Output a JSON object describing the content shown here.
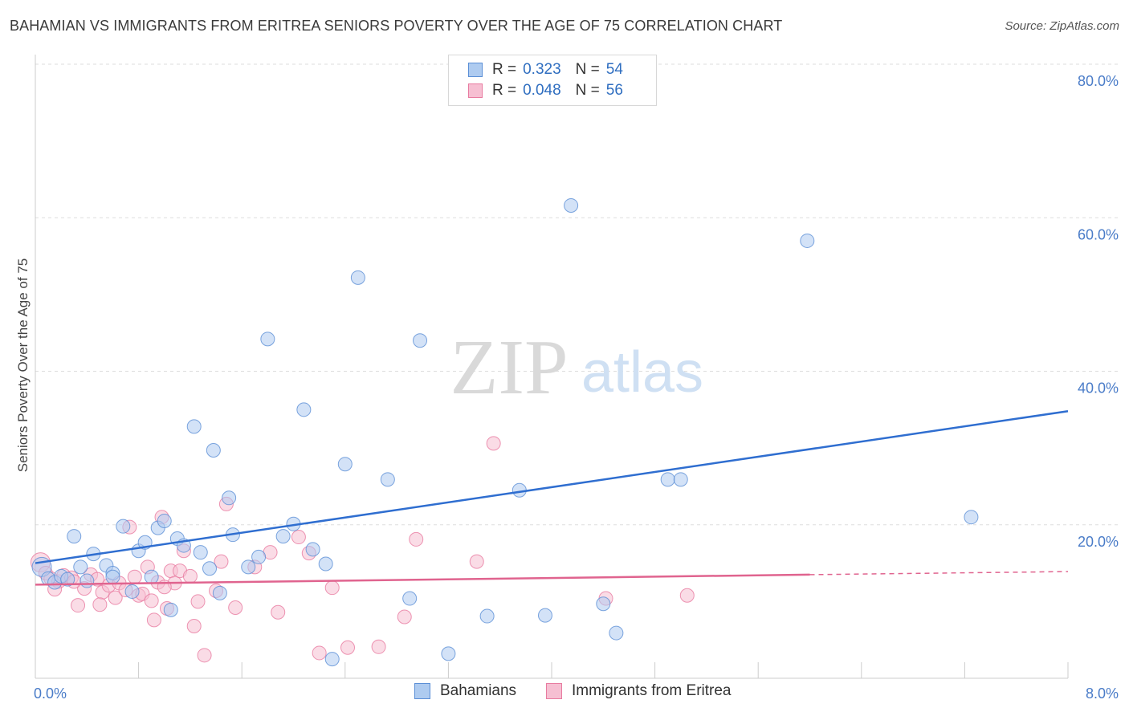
{
  "title": "BAHAMIAN VS IMMIGRANTS FROM ERITREA SENIORS POVERTY OVER THE AGE OF 75 CORRELATION CHART",
  "source": "Source: ZipAtlas.com",
  "colors": {
    "blue": "#5b8fd6",
    "blue_fill": "#aecbf0",
    "pink": "#e87ba0",
    "pink_fill": "#f6bfd2",
    "tick": "#4a7cc8",
    "grid": "#dddddd"
  },
  "legend": {
    "r_label": "R =",
    "n_label": "N =",
    "rows": [
      {
        "r": "0.323",
        "n": "54"
      },
      {
        "r": "0.048",
        "n": "56"
      }
    ]
  },
  "watermark": {
    "zip": "ZIP",
    "atlas": "atlas"
  },
  "chart_data": {
    "type": "scatter",
    "xlabel": "",
    "ylabel": "Seniors Poverty Over the Age of 75",
    "xlim": [
      0,
      8
    ],
    "ylim": [
      0,
      80
    ],
    "x_ticks": [
      "0.0%",
      "8.0%"
    ],
    "y_ticks": [
      {
        "value": 20,
        "label": "20.0%"
      },
      {
        "value": 40,
        "label": "40.0%"
      },
      {
        "value": 60,
        "label": "60.0%"
      },
      {
        "value": 80,
        "label": "80.0%"
      }
    ],
    "grid": true,
    "legend_position": "bottom",
    "series": [
      {
        "name": "Bahamians",
        "trend": {
          "x": [
            0,
            8
          ],
          "y": [
            15.0,
            34.8
          ]
        },
        "points": [
          [
            0.05,
            14.5
          ],
          [
            0.1,
            13.0
          ],
          [
            0.15,
            12.5
          ],
          [
            0.2,
            13.3
          ],
          [
            0.3,
            18.5
          ],
          [
            0.35,
            14.5
          ],
          [
            0.4,
            12.7
          ],
          [
            0.45,
            16.2
          ],
          [
            0.55,
            14.7
          ],
          [
            0.6,
            13.7
          ],
          [
            0.68,
            19.8
          ],
          [
            0.75,
            11.3
          ],
          [
            0.8,
            16.6
          ],
          [
            0.85,
            17.7
          ],
          [
            0.9,
            13.2
          ],
          [
            0.95,
            19.6
          ],
          [
            1.0,
            20.5
          ],
          [
            1.05,
            8.9
          ],
          [
            1.1,
            18.2
          ],
          [
            1.15,
            17.3
          ],
          [
            1.23,
            32.8
          ],
          [
            1.28,
            16.4
          ],
          [
            1.35,
            14.3
          ],
          [
            1.38,
            29.7
          ],
          [
            1.43,
            11.1
          ],
          [
            1.5,
            23.5
          ],
          [
            1.53,
            18.7
          ],
          [
            1.65,
            14.5
          ],
          [
            1.73,
            15.8
          ],
          [
            1.8,
            44.2
          ],
          [
            1.92,
            18.5
          ],
          [
            2.0,
            20.1
          ],
          [
            2.08,
            35.0
          ],
          [
            2.15,
            16.8
          ],
          [
            2.25,
            14.9
          ],
          [
            2.3,
            2.5
          ],
          [
            2.4,
            27.9
          ],
          [
            2.5,
            52.2
          ],
          [
            2.73,
            25.9
          ],
          [
            2.9,
            10.4
          ],
          [
            2.98,
            44.0
          ],
          [
            3.2,
            3.2
          ],
          [
            3.5,
            8.1
          ],
          [
            3.75,
            24.5
          ],
          [
            3.95,
            8.2
          ],
          [
            4.15,
            61.6
          ],
          [
            4.4,
            9.7
          ],
          [
            4.5,
            5.9
          ],
          [
            4.9,
            25.9
          ],
          [
            5.0,
            25.9
          ],
          [
            5.98,
            57.0
          ],
          [
            7.25,
            21.0
          ],
          [
            0.25,
            12.9
          ],
          [
            0.6,
            13.2
          ]
        ]
      },
      {
        "name": "Immigrants from Eritrea",
        "trend": {
          "x": [
            0,
            6.0
          ],
          "y": [
            12.2,
            13.5
          ]
        },
        "trend_dashed": {
          "x": [
            6.0,
            8
          ],
          "y": [
            13.5,
            13.9
          ]
        },
        "points": [
          [
            0.04,
            15.1
          ],
          [
            0.08,
            13.7
          ],
          [
            0.12,
            13.0
          ],
          [
            0.18,
            12.6
          ],
          [
            0.22,
            13.4
          ],
          [
            0.28,
            13.1
          ],
          [
            0.33,
            9.5
          ],
          [
            0.38,
            11.7
          ],
          [
            0.43,
            13.5
          ],
          [
            0.48,
            12.9
          ],
          [
            0.52,
            11.2
          ],
          [
            0.57,
            12.1
          ],
          [
            0.62,
            10.5
          ],
          [
            0.65,
            12.4
          ],
          [
            0.7,
            11.5
          ],
          [
            0.73,
            19.7
          ],
          [
            0.77,
            13.2
          ],
          [
            0.8,
            10.8
          ],
          [
            0.83,
            11.0
          ],
          [
            0.87,
            14.5
          ],
          [
            0.9,
            10.1
          ],
          [
            0.92,
            7.6
          ],
          [
            0.95,
            12.5
          ],
          [
            0.98,
            21.0
          ],
          [
            1.02,
            9.1
          ],
          [
            1.05,
            14.0
          ],
          [
            1.08,
            12.4
          ],
          [
            1.12,
            14.0
          ],
          [
            1.15,
            16.6
          ],
          [
            1.2,
            13.3
          ],
          [
            1.23,
            6.8
          ],
          [
            1.26,
            10.0
          ],
          [
            1.31,
            3.0
          ],
          [
            1.4,
            11.4
          ],
          [
            1.44,
            15.2
          ],
          [
            1.48,
            22.7
          ],
          [
            1.55,
            9.2
          ],
          [
            1.7,
            14.5
          ],
          [
            1.82,
            16.4
          ],
          [
            1.88,
            8.6
          ],
          [
            2.04,
            18.4
          ],
          [
            2.12,
            16.3
          ],
          [
            2.2,
            3.3
          ],
          [
            2.3,
            11.8
          ],
          [
            2.42,
            4.0
          ],
          [
            2.66,
            4.1
          ],
          [
            2.86,
            8.0
          ],
          [
            2.95,
            18.1
          ],
          [
            3.42,
            15.2
          ],
          [
            3.55,
            30.6
          ],
          [
            4.42,
            10.4
          ],
          [
            5.05,
            10.8
          ],
          [
            0.3,
            12.6
          ],
          [
            0.5,
            9.6
          ],
          [
            0.15,
            11.6
          ],
          [
            1.0,
            11.9
          ]
        ]
      }
    ]
  }
}
